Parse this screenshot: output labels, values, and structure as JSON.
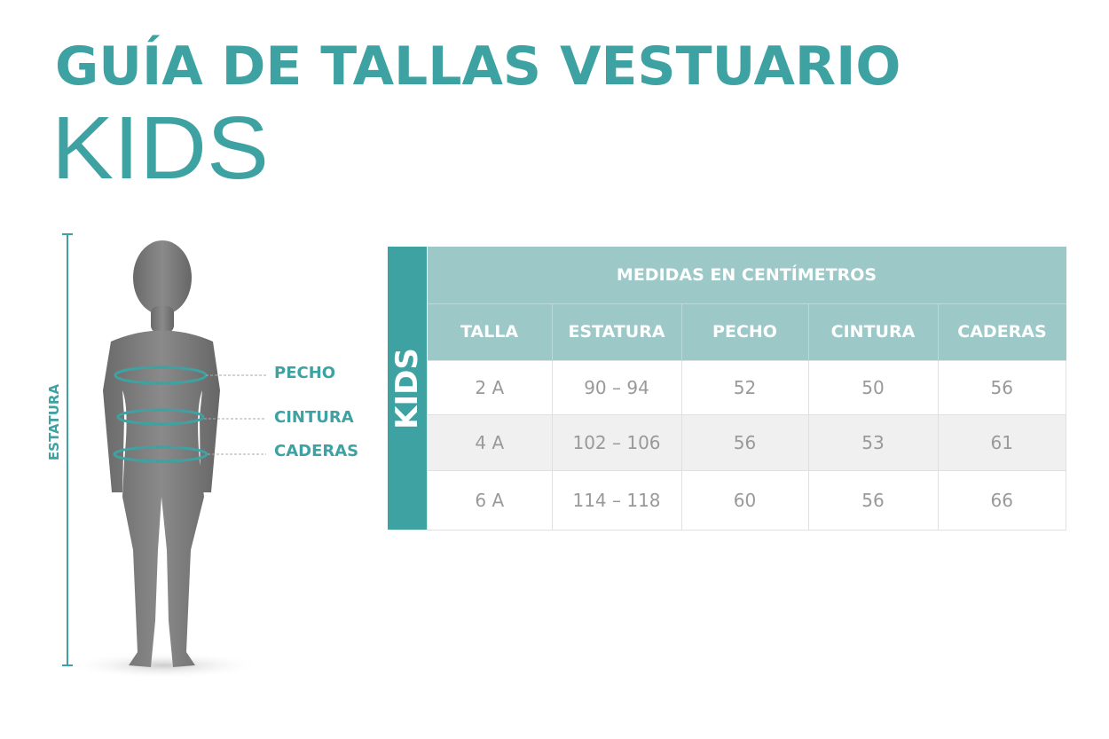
{
  "title": "GUÍA DE TALLAS VESTUARIO",
  "subtitle": "KIDS",
  "figure": {
    "height_label": "ESTATURA",
    "labels": [
      "PECHO",
      "CINTURA",
      "CADERAS"
    ]
  },
  "table": {
    "side_label": "KIDS",
    "group_header": "MEDIDAS EN CENTÍMETROS",
    "columns": [
      "TALLA",
      "ESTATURA",
      "PECHO",
      "CINTURA",
      "CADERAS"
    ],
    "rows": [
      [
        "2 A",
        "90 – 94",
        "52",
        "50",
        "56"
      ],
      [
        "4 A",
        "102 – 106",
        "56",
        "53",
        "61"
      ],
      [
        "6 A",
        "114 – 118",
        "60",
        "56",
        "66"
      ]
    ]
  },
  "colors": {
    "accent": "#3fa2a2",
    "header": "#9cc8c8",
    "alt_row": "#f0f0f0",
    "text": "#999999"
  }
}
